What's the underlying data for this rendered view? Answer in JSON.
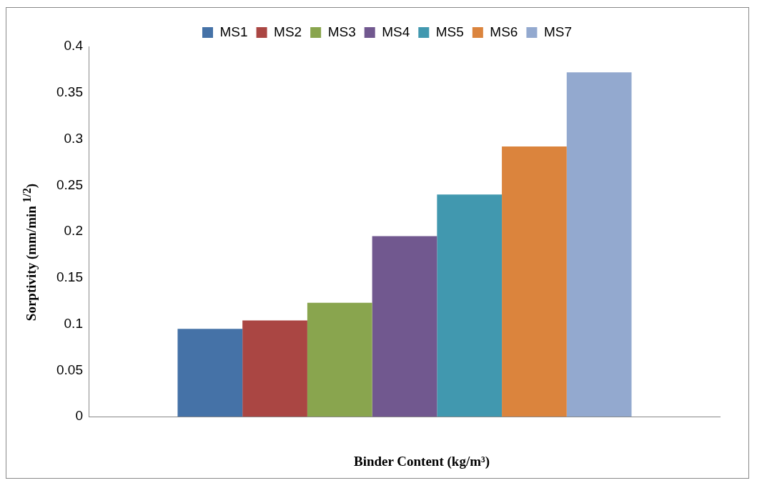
{
  "chart_data": {
    "type": "bar",
    "xlabel": "Binder Content (kg/m³)",
    "ylabel": "Sorptivity (mm/min $^{1/2}$)",
    "categories": [
      null
    ],
    "series": [
      {
        "name": "MS1",
        "color": "#4572a7",
        "values": [
          0.095
        ]
      },
      {
        "name": "MS2",
        "color": "#aa4643",
        "values": [
          0.104
        ]
      },
      {
        "name": "MS3",
        "color": "#89a54e",
        "values": [
          0.123
        ]
      },
      {
        "name": "MS4",
        "color": "#71588f",
        "values": [
          0.195
        ]
      },
      {
        "name": "MS5",
        "color": "#4198af",
        "values": [
          0.24
        ]
      },
      {
        "name": "MS6",
        "color": "#db843d",
        "values": [
          0.292
        ]
      },
      {
        "name": "MS7",
        "color": "#93a9cf",
        "values": [
          0.372
        ]
      }
    ],
    "ylim": [
      0,
      0.4
    ],
    "yticks": [
      0,
      0.05,
      0.1,
      0.15,
      0.2,
      0.25,
      0.3,
      0.35,
      0.4
    ],
    "legend": "top"
  }
}
